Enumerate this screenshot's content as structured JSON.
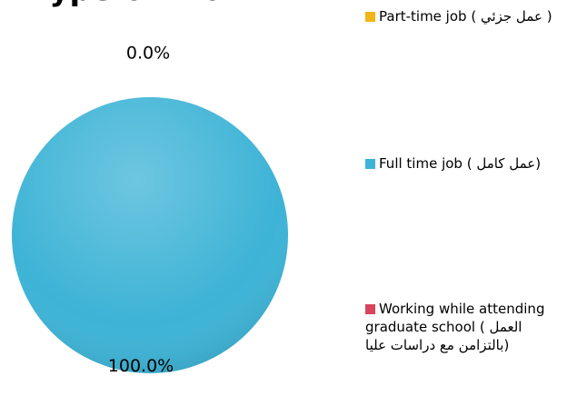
{
  "chart_data": {
    "type": "pie",
    "title": "Type of Work",
    "categories": [
      "Part-time job ( عمل جزئي )",
      "Full time job ( عمل كامل)",
      "Working while attending graduate school ( العمل بالتزامن مع دراسات عليا)"
    ],
    "values": [
      0,
      100,
      0
    ],
    "value_labels": [
      "0.0%",
      "100.0%",
      null
    ],
    "colors": [
      "#f2b517",
      "#3db3d6",
      "#d9455c"
    ]
  }
}
